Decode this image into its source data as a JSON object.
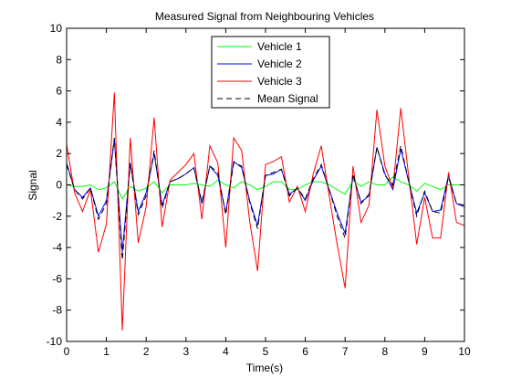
{
  "chart_data": {
    "type": "line",
    "title": "Measured Signal from Neighbouring Vehicles",
    "xlabel": "Time(s)",
    "ylabel": "Signal",
    "xlim": [
      0,
      10
    ],
    "ylim": [
      -10,
      10
    ],
    "xticks": [
      0,
      1,
      2,
      3,
      4,
      5,
      6,
      7,
      8,
      9,
      10
    ],
    "yticks": [
      -10,
      -8,
      -6,
      -4,
      -2,
      0,
      2,
      4,
      6,
      8,
      10
    ],
    "grid": false,
    "legend_position": "top-center",
    "x": [
      0,
      0.2,
      0.4,
      0.6,
      0.8,
      1.0,
      1.2,
      1.4,
      1.6,
      1.8,
      2.0,
      2.2,
      2.4,
      2.6,
      2.8,
      3.0,
      3.2,
      3.4,
      3.6,
      3.8,
      4.0,
      4.2,
      4.4,
      4.6,
      4.8,
      5.0,
      5.2,
      5.4,
      5.6,
      5.8,
      6.0,
      6.2,
      6.4,
      6.6,
      6.8,
      7.0,
      7.2,
      7.4,
      7.6,
      7.8,
      8.0,
      8.2,
      8.4,
      8.6,
      8.8,
      9.0,
      9.2,
      9.4,
      9.6,
      9.8,
      10.0
    ],
    "series": [
      {
        "name": "Vehicle 1",
        "color": "#00ff00",
        "dash": "solid",
        "values": [
          0.0,
          -0.1,
          -0.1,
          0.0,
          -0.3,
          -0.2,
          0.2,
          -0.9,
          -0.1,
          -0.4,
          -0.2,
          0.2,
          -0.5,
          0.0,
          0.0,
          0.0,
          0.1,
          0.0,
          -0.1,
          0.3,
          0.0,
          -0.2,
          0.2,
          0.0,
          -0.3,
          -0.1,
          0.2,
          0.2,
          -0.3,
          -0.3,
          0.0,
          0.2,
          0.2,
          0.0,
          -0.3,
          -0.6,
          0.3,
          -0.1,
          0.2,
          0.0,
          0.0,
          0.5,
          0.2,
          0.0,
          -0.4,
          0.1,
          -0.1,
          -0.3,
          0.0,
          0.0,
          0.0
        ]
      },
      {
        "name": "Vehicle 2",
        "color": "#0000ff",
        "dash": "solid",
        "values": [
          1.4,
          -0.3,
          -0.8,
          -0.2,
          -2.0,
          -1.0,
          2.9,
          -4.3,
          1.4,
          -1.7,
          -0.5,
          2.0,
          -1.3,
          0.2,
          0.4,
          0.7,
          1.1,
          -1.2,
          1.2,
          0.6,
          -1.8,
          1.5,
          1.1,
          -1.0,
          -2.6,
          0.6,
          0.7,
          1.0,
          -0.6,
          -0.2,
          -1.0,
          0.3,
          1.2,
          -0.3,
          -1.8,
          -3.1,
          0.6,
          -1.1,
          -0.7,
          2.4,
          0.7,
          -0.3,
          2.3,
          0.2,
          -1.8,
          -0.5,
          -1.7,
          -1.6,
          0.6,
          -1.2,
          -1.4
        ]
      },
      {
        "name": "Vehicle 3",
        "color": "#ff0000",
        "dash": "solid",
        "values": [
          2.6,
          -0.5,
          -1.7,
          -0.3,
          -4.3,
          -2.5,
          5.9,
          -9.3,
          3.0,
          -3.7,
          -1.4,
          4.3,
          -2.7,
          0.3,
          0.8,
          1.3,
          2.0,
          -2.2,
          2.5,
          1.4,
          -4.0,
          3.0,
          2.2,
          -2.3,
          -5.5,
          1.3,
          1.5,
          1.8,
          -1.1,
          -0.1,
          -1.7,
          0.7,
          2.5,
          -0.7,
          -3.8,
          -6.6,
          1.2,
          -2.4,
          -1.3,
          4.8,
          1.2,
          -0.2,
          4.9,
          0.5,
          -3.8,
          -0.8,
          -3.4,
          -3.4,
          0.8,
          -2.4,
          -2.6
        ]
      },
      {
        "name": "Mean Signal",
        "color": "#000000",
        "dash": "dashed",
        "values": [
          1.3,
          -0.3,
          -0.9,
          -0.2,
          -2.2,
          -1.2,
          3.0,
          -4.8,
          1.4,
          -1.9,
          -0.7,
          2.2,
          -1.5,
          0.2,
          0.4,
          0.7,
          1.1,
          -1.1,
          1.2,
          0.8,
          -1.9,
          1.4,
          1.2,
          -1.1,
          -2.8,
          0.6,
          0.8,
          1.0,
          -0.7,
          -0.2,
          -0.9,
          0.4,
          1.3,
          -0.3,
          -2.0,
          -3.4,
          0.7,
          -1.2,
          -0.6,
          2.4,
          0.6,
          0.0,
          2.5,
          0.2,
          -2.0,
          -0.4,
          -1.7,
          -1.8,
          0.5,
          -1.2,
          -1.3
        ]
      }
    ]
  }
}
